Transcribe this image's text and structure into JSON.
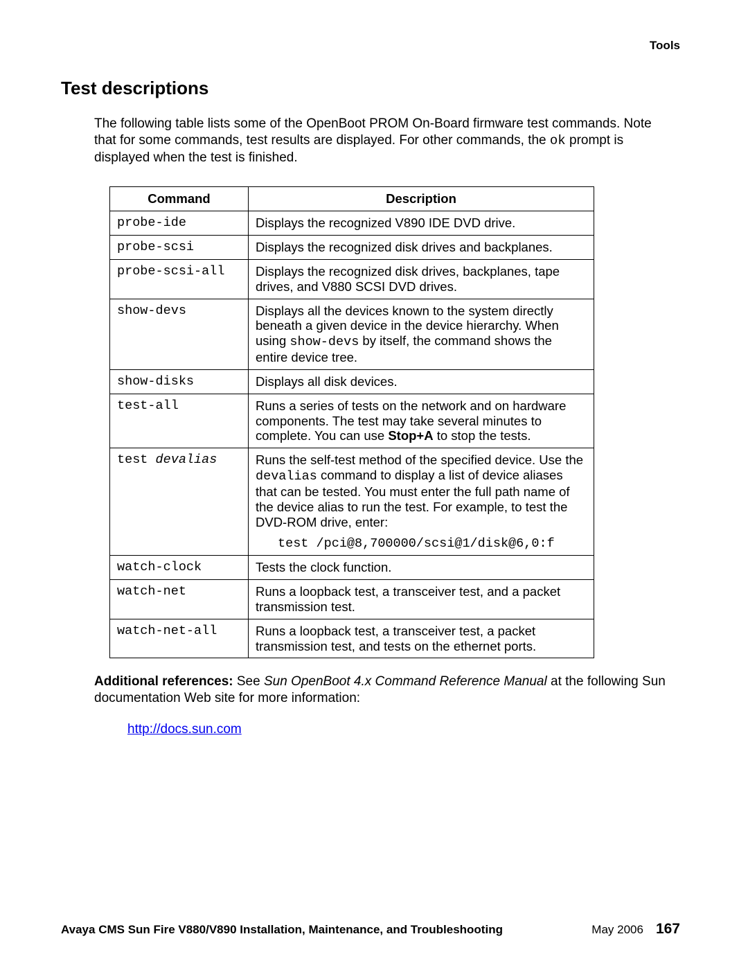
{
  "header": {
    "section": "Tools"
  },
  "title": "Test descriptions",
  "intro": {
    "pre": "The following table lists some of the OpenBoot PROM On-Board firmware test commands. Note that for some commands, test results are displayed. For other commands, the ",
    "code": "ok",
    "post": " prompt is displayed when the test is finished."
  },
  "table": {
    "headers": {
      "command": "Command",
      "description": "Description"
    },
    "rows": [
      {
        "cmd": "probe-ide",
        "desc": "Displays the recognized V890 IDE DVD drive."
      },
      {
        "cmd": "probe-scsi",
        "desc": "Displays the recognized disk drives and backplanes."
      },
      {
        "cmd": "probe-scsi-all",
        "desc": "Displays the recognized disk drives, backplanes, tape drives, and V880 SCSI DVD drives."
      },
      {
        "cmd": "show-devs",
        "d1": "Displays all the devices known to the system directly beneath a given device in the device hierarchy. When using ",
        "code": "show-devs",
        "d2": " by itself, the command shows the entire device tree."
      },
      {
        "cmd": "show-disks",
        "desc": "Displays all disk devices."
      },
      {
        "cmd": "test-all",
        "d1": "Runs a series of tests on the network and on hardware components. The test may take several minutes to complete. You can use ",
        "bold": "Stop+A",
        "d2": " to stop the tests."
      },
      {
        "cmd_pre": "test ",
        "cmd_ital": "devalias",
        "d1": "Runs the self-test method of the specified device. Use the ",
        "code": "devalias",
        "d2": " command to display a list of device aliases that can be tested. You must enter the full path name of the device alias to run the test. For example, to test the DVD-ROM drive, enter:",
        "example": "test /pci@8,700000/scsi@1/disk@6,0:f"
      },
      {
        "cmd": "watch-clock",
        "desc": "Tests the clock function."
      },
      {
        "cmd": "watch-net",
        "desc": "Runs a loopback test, a transceiver test, and a packet transmission test."
      },
      {
        "cmd": "watch-net-all",
        "desc": "Runs a loopback test, a transceiver test, a packet transmission test, and tests on the ethernet ports."
      }
    ]
  },
  "refs": {
    "label": "Additional references:",
    "pre": " See ",
    "ital": "Sun OpenBoot 4.x Command Reference Manual",
    "post": " at the following Sun documentation Web site for more information:",
    "url": "http://docs.sun.com"
  },
  "footer": {
    "title": "Avaya CMS Sun Fire V880/V890 Installation, Maintenance, and Troubleshooting",
    "date": "May 2006",
    "page": "167"
  }
}
